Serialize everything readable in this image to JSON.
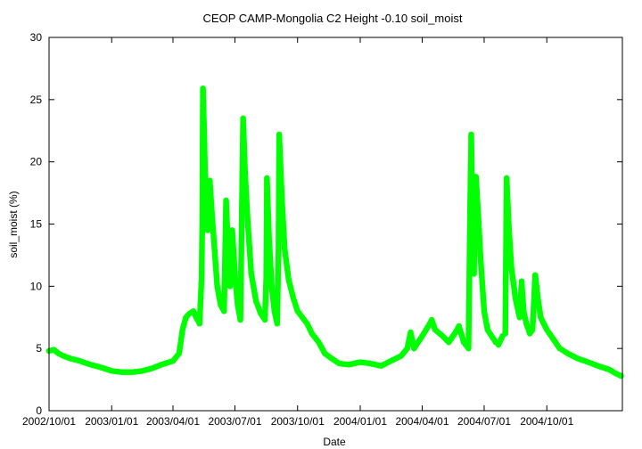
{
  "chart_data": {
    "type": "scatter",
    "title": "CEOP CAMP-Mongolia C2 Height -0.10 soil_moist",
    "xlabel": "Date",
    "ylabel": "soil_moist (%)",
    "ylim": [
      0,
      30
    ],
    "yticks": [
      0,
      5,
      10,
      15,
      20,
      25,
      30
    ],
    "xlim": [
      "2002-10-01",
      "2005-01-20"
    ],
    "xticks": [
      {
        "date": "2002-10-01",
        "label": "2002/10/01"
      },
      {
        "date": "2003-01-01",
        "label": "2003/01/01"
      },
      {
        "date": "2003-04-01",
        "label": "2003/04/01"
      },
      {
        "date": "2003-07-01",
        "label": "2003/07/01"
      },
      {
        "date": "2003-10-01",
        "label": "2003/10/01"
      },
      {
        "date": "2004-01-01",
        "label": "2004/01/01"
      },
      {
        "date": "2004-04-01",
        "label": "2004/04/01"
      },
      {
        "date": "2004-07-01",
        "label": "2004/07/01"
      },
      {
        "date": "2004-10-01",
        "label": "2004/10/01"
      }
    ],
    "grid": false,
    "series": [
      {
        "name": "soil_moist",
        "color": "#00ff00",
        "points": [
          [
            "2002-10-01",
            4.8
          ],
          [
            "2002-10-08",
            4.9
          ],
          [
            "2002-10-15",
            4.6
          ],
          [
            "2002-10-22",
            4.4
          ],
          [
            "2002-11-01",
            4.2
          ],
          [
            "2002-11-15",
            4.0
          ],
          [
            "2002-12-01",
            3.7
          ],
          [
            "2002-12-15",
            3.5
          ],
          [
            "2003-01-01",
            3.2
          ],
          [
            "2003-01-15",
            3.1
          ],
          [
            "2003-02-01",
            3.1
          ],
          [
            "2003-02-15",
            3.2
          ],
          [
            "2003-03-01",
            3.4
          ],
          [
            "2003-03-15",
            3.7
          ],
          [
            "2003-04-01",
            4.0
          ],
          [
            "2003-04-10",
            4.6
          ],
          [
            "2003-04-15",
            6.5
          ],
          [
            "2003-04-20",
            7.5
          ],
          [
            "2003-04-25",
            7.8
          ],
          [
            "2003-05-01",
            8.0
          ],
          [
            "2003-05-05",
            7.5
          ],
          [
            "2003-05-10",
            7.0
          ],
          [
            "2003-05-13",
            10.6
          ],
          [
            "2003-05-14",
            15.0
          ],
          [
            "2003-05-15",
            25.9
          ],
          [
            "2003-05-17",
            22.0
          ],
          [
            "2003-05-19",
            17.0
          ],
          [
            "2003-05-22",
            14.5
          ],
          [
            "2003-05-25",
            18.5
          ],
          [
            "2003-05-28",
            16.0
          ],
          [
            "2003-06-01",
            13.0
          ],
          [
            "2003-06-05",
            10.0
          ],
          [
            "2003-06-10",
            8.5
          ],
          [
            "2003-06-15",
            8.0
          ],
          [
            "2003-06-18",
            16.9
          ],
          [
            "2003-06-21",
            13.0
          ],
          [
            "2003-06-24",
            10.0
          ],
          [
            "2003-06-27",
            14.5
          ],
          [
            "2003-07-01",
            11.0
          ],
          [
            "2003-07-05",
            8.5
          ],
          [
            "2003-07-09",
            7.3
          ],
          [
            "2003-07-13",
            23.5
          ],
          [
            "2003-07-16",
            19.0
          ],
          [
            "2003-07-20",
            15.0
          ],
          [
            "2003-07-25",
            11.0
          ],
          [
            "2003-08-01",
            8.8
          ],
          [
            "2003-08-08",
            7.8
          ],
          [
            "2003-08-14",
            7.3
          ],
          [
            "2003-08-16",
            10.7
          ],
          [
            "2003-08-17",
            18.7
          ],
          [
            "2003-08-20",
            14.0
          ],
          [
            "2003-08-24",
            10.0
          ],
          [
            "2003-08-28",
            8.0
          ],
          [
            "2003-09-01",
            7.0
          ],
          [
            "2003-09-03",
            13.0
          ],
          [
            "2003-09-04",
            22.2
          ],
          [
            "2003-09-08",
            17.0
          ],
          [
            "2003-09-12",
            13.0
          ],
          [
            "2003-09-18",
            10.5
          ],
          [
            "2003-09-25",
            9.0
          ],
          [
            "2003-10-01",
            8.0
          ],
          [
            "2003-10-08",
            7.5
          ],
          [
            "2003-10-15",
            7.0
          ],
          [
            "2003-10-22",
            6.2
          ],
          [
            "2003-11-01",
            5.5
          ],
          [
            "2003-11-10",
            4.6
          ],
          [
            "2003-11-20",
            4.2
          ],
          [
            "2003-12-01",
            3.8
          ],
          [
            "2003-12-15",
            3.7
          ],
          [
            "2004-01-01",
            3.9
          ],
          [
            "2004-01-15",
            3.8
          ],
          [
            "2004-02-01",
            3.6
          ],
          [
            "2004-02-15",
            4.0
          ],
          [
            "2004-03-01",
            4.4
          ],
          [
            "2004-03-10",
            5.0
          ],
          [
            "2004-03-15",
            6.3
          ],
          [
            "2004-03-20",
            5.0
          ],
          [
            "2004-04-01",
            6.0
          ],
          [
            "2004-04-10",
            6.8
          ],
          [
            "2004-04-15",
            7.3
          ],
          [
            "2004-04-20",
            6.5
          ],
          [
            "2004-05-01",
            6.0
          ],
          [
            "2004-05-10",
            5.5
          ],
          [
            "2004-05-20",
            6.3
          ],
          [
            "2004-05-25",
            6.8
          ],
          [
            "2004-06-01",
            5.5
          ],
          [
            "2004-06-08",
            5.0
          ],
          [
            "2004-06-10",
            14.8
          ],
          [
            "2004-06-12",
            22.2
          ],
          [
            "2004-06-14",
            15.0
          ],
          [
            "2004-06-16",
            11.0
          ],
          [
            "2004-06-19",
            18.8
          ],
          [
            "2004-06-22",
            16.0
          ],
          [
            "2004-06-26",
            12.0
          ],
          [
            "2004-07-01",
            8.0
          ],
          [
            "2004-07-06",
            6.5
          ],
          [
            "2004-07-12",
            6.0
          ],
          [
            "2004-07-18",
            5.5
          ],
          [
            "2004-07-22",
            5.3
          ],
          [
            "2004-07-28",
            6.0
          ],
          [
            "2004-08-01",
            6.2
          ],
          [
            "2004-08-03",
            18.7
          ],
          [
            "2004-08-06",
            15.0
          ],
          [
            "2004-08-10",
            11.5
          ],
          [
            "2004-08-16",
            9.0
          ],
          [
            "2004-08-22",
            7.5
          ],
          [
            "2004-08-25",
            10.4
          ],
          [
            "2004-08-28",
            8.0
          ],
          [
            "2004-09-01",
            7.0
          ],
          [
            "2004-09-06",
            6.2
          ],
          [
            "2004-09-10",
            6.5
          ],
          [
            "2004-09-14",
            10.9
          ],
          [
            "2004-09-18",
            9.0
          ],
          [
            "2004-09-22",
            7.5
          ],
          [
            "2004-10-01",
            6.5
          ],
          [
            "2004-10-10",
            5.8
          ],
          [
            "2004-10-20",
            5.0
          ],
          [
            "2004-11-01",
            4.6
          ],
          [
            "2004-11-15",
            4.2
          ],
          [
            "2004-12-01",
            3.9
          ],
          [
            "2004-12-15",
            3.6
          ],
          [
            "2005-01-01",
            3.3
          ],
          [
            "2005-01-10",
            3.0
          ],
          [
            "2005-01-18",
            2.8
          ]
        ]
      }
    ]
  }
}
